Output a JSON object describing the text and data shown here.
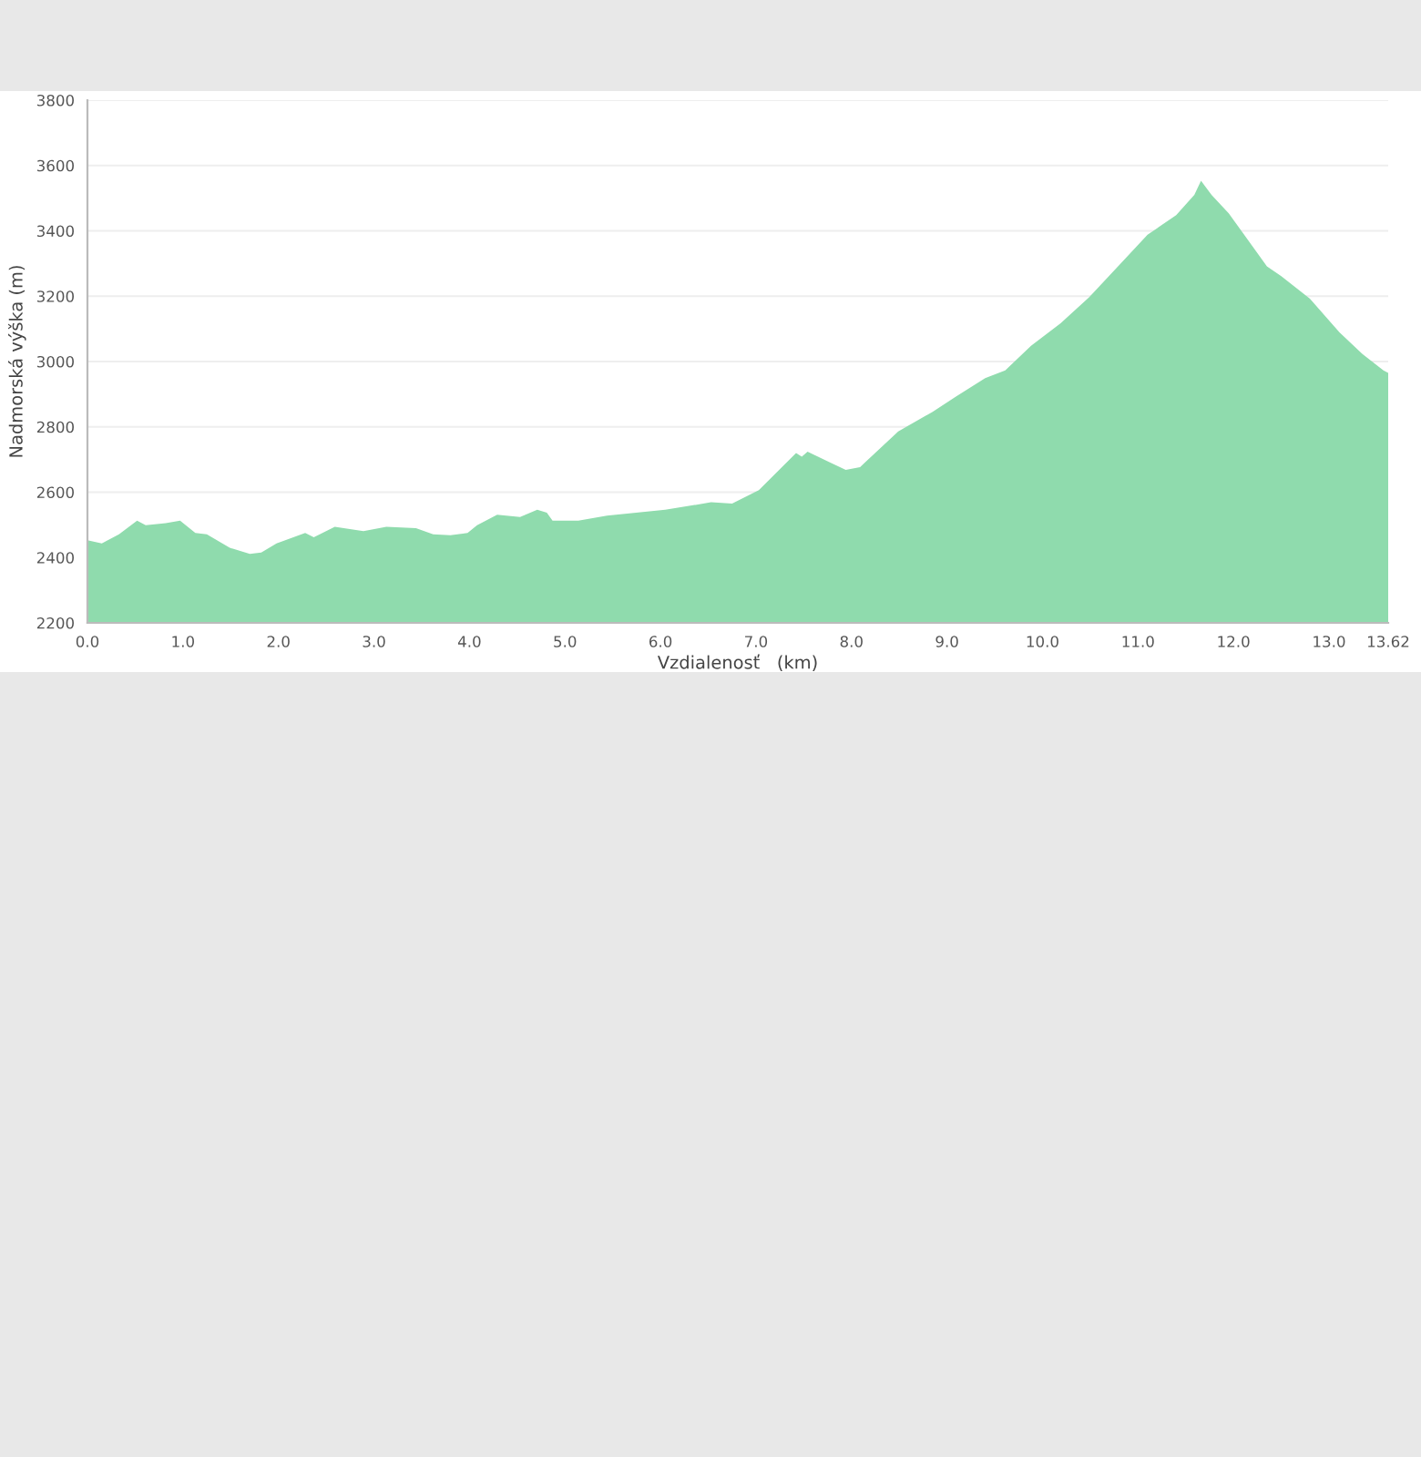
{
  "chart_data": {
    "type": "area",
    "xlabel": "Vzdialenosť   (km)",
    "ylabel": "Nadmorská výška (m)",
    "x": [
      0.0,
      0.15,
      0.33,
      0.52,
      0.61,
      0.82,
      0.97,
      1.13,
      1.25,
      1.49,
      1.7,
      1.82,
      1.98,
      2.28,
      2.37,
      2.59,
      2.89,
      3.13,
      3.44,
      3.62,
      3.8,
      3.98,
      4.08,
      4.29,
      4.53,
      4.71,
      4.81,
      4.87,
      5.14,
      5.44,
      6.05,
      6.53,
      6.75,
      7.03,
      7.42,
      7.48,
      7.54,
      7.94,
      8.09,
      8.49,
      8.85,
      9.09,
      9.4,
      9.61,
      9.88,
      10.19,
      10.49,
      10.86,
      11.1,
      11.4,
      11.59,
      11.66,
      11.77,
      11.95,
      12.35,
      12.5,
      12.8,
      13.11,
      13.35,
      13.57,
      13.62
    ],
    "series": [
      {
        "color": "#8fdbad",
        "values": [
          2453,
          2443,
          2471,
          2513,
          2499,
          2505,
          2513,
          2475,
          2471,
          2430,
          2411,
          2415,
          2443,
          2475,
          2462,
          2494,
          2481,
          2494,
          2490,
          2471,
          2468,
          2475,
          2499,
          2531,
          2524,
          2546,
          2537,
          2513,
          2513,
          2528,
          2546,
          2569,
          2565,
          2606,
          2720,
          2709,
          2724,
          2668,
          2677,
          2786,
          2846,
          2892,
          2949,
          2973,
          3048,
          3117,
          3197,
          3313,
          3388,
          3448,
          3510,
          3553,
          3510,
          3454,
          3291,
          3261,
          3192,
          3089,
          3023,
          2973,
          2965
        ]
      }
    ],
    "xlim": [
      0,
      13.62
    ],
    "ylim": [
      2200,
      3800
    ],
    "xticks": [
      {
        "value": 0,
        "label": "0.0"
      },
      {
        "value": 1,
        "label": "1.0"
      },
      {
        "value": 2,
        "label": "2.0"
      },
      {
        "value": 3,
        "label": "3.0"
      },
      {
        "value": 4,
        "label": "4.0"
      },
      {
        "value": 5,
        "label": "5.0"
      },
      {
        "value": 6,
        "label": "6.0"
      },
      {
        "value": 7,
        "label": "7.0"
      },
      {
        "value": 8,
        "label": "8.0"
      },
      {
        "value": 9,
        "label": "9.0"
      },
      {
        "value": 10,
        "label": "10.0"
      },
      {
        "value": 11,
        "label": "11.0"
      },
      {
        "value": 12,
        "label": "12.0"
      },
      {
        "value": 13,
        "label": "13.0"
      },
      13.62
    ],
    "yticks": [
      2200,
      2400,
      2600,
      2800,
      3000,
      3200,
      3400,
      3600,
      3800
    ],
    "grid": "y",
    "legend": false
  }
}
